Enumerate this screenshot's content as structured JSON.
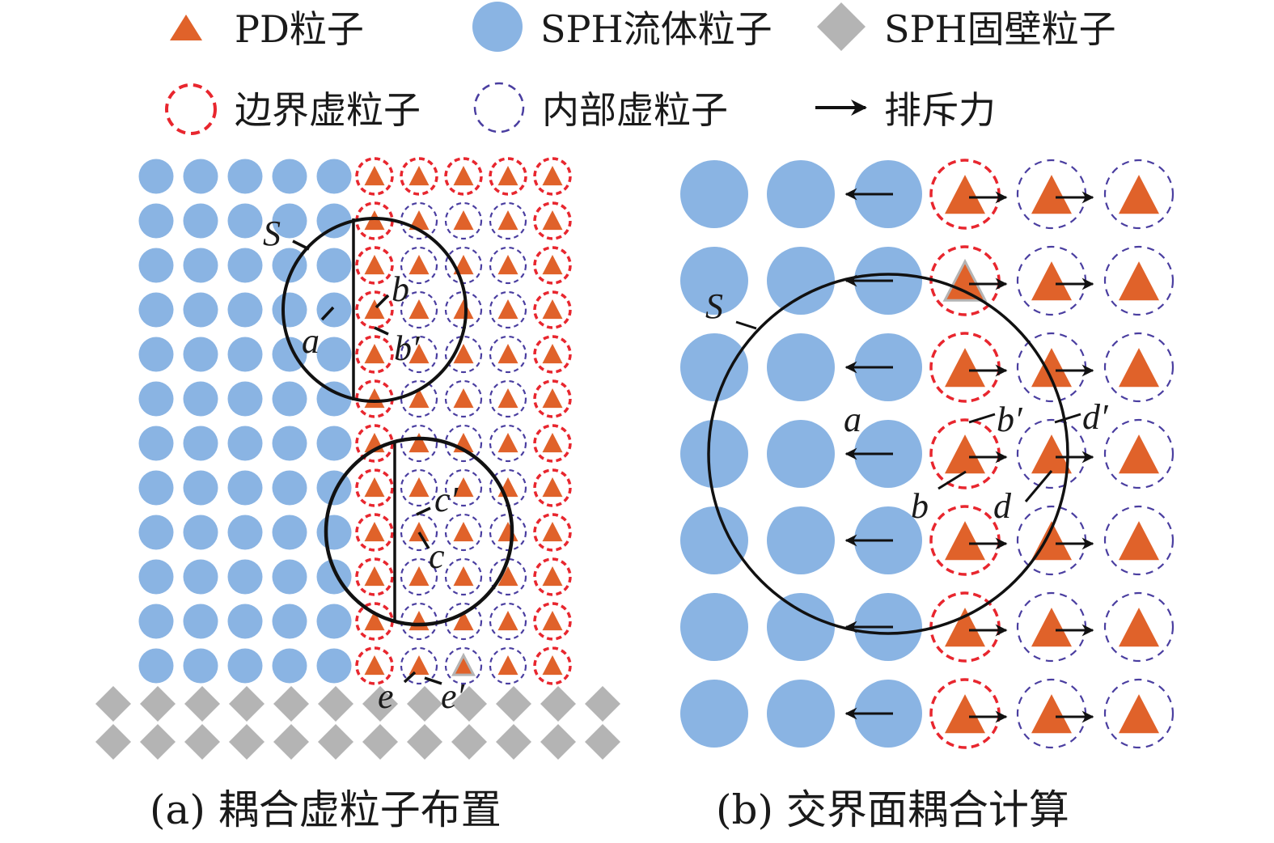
{
  "legend": {
    "pd_particle": "PD粒子",
    "sph_fluid_particle": "SPH流体粒子",
    "sph_wall_particle": "SPH固壁粒子",
    "boundary_ghost_particle": "边界虚粒子",
    "interior_ghost_particle": "内部虚粒子",
    "repulsive_force": "排斥力"
  },
  "captions": {
    "a": "(a) 耦合虚粒子布置",
    "b": "(b) 交界面耦合计算"
  },
  "panel_a_labels": {
    "S": "S",
    "a": "a",
    "b": "b",
    "b_prime": "b′",
    "c": "c",
    "c_prime": "c′",
    "e": "e",
    "e_prime": "e′"
  },
  "panel_b_labels": {
    "S": "S",
    "a": "a",
    "b": "b",
    "b_prime": "b′",
    "d": "d",
    "d_prime": "d′"
  },
  "colors": {
    "sph_fluid": "#8ab4e3",
    "pd": "#e0622a",
    "boundary_ghost": "#e8262e",
    "interior_ghost": "#4a3ea0",
    "wall": "#b4b4b4",
    "line": "#111111"
  }
}
